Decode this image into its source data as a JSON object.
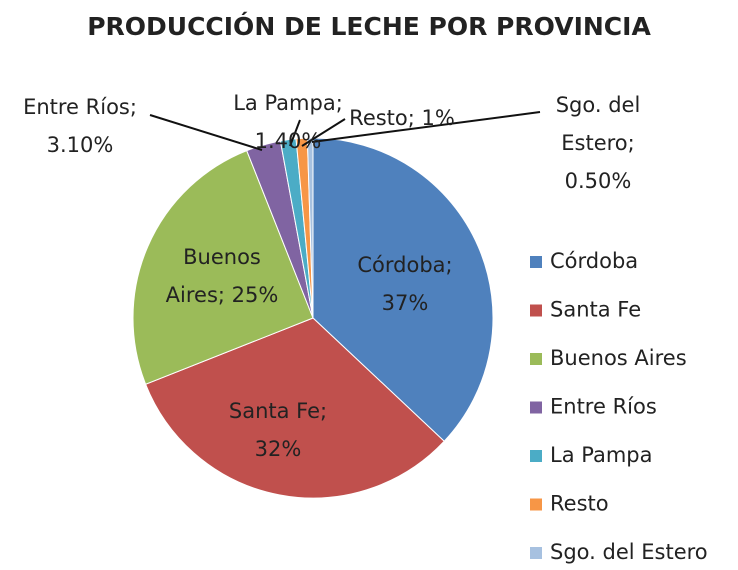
{
  "chart_data": {
    "type": "pie",
    "title": "PRODUCCIÓN DE LECHE POR PROVINCIA",
    "categories": [
      "Córdoba",
      "Santa Fe",
      "Buenos Aires",
      "Entre Ríos",
      "La Pampa",
      "Resto",
      "Sgo. del Estero"
    ],
    "values": [
      37,
      32,
      25,
      3.1,
      1.4,
      1,
      0.5
    ],
    "value_labels": [
      "Córdoba;\n37%",
      "Santa Fe;\n32%",
      "Buenos\nAires; 25%",
      "Entre Ríos;\n3.10%",
      "La Pampa;\n1.40%",
      "Resto; 1%",
      "Sgo. del\nEstero;\n0.50%"
    ],
    "colors": [
      "#4f81bd",
      "#c0504d",
      "#9bbb59",
      "#8064a2",
      "#4bacc6",
      "#f79646",
      "#a7c1e0"
    ],
    "legend": "right"
  }
}
